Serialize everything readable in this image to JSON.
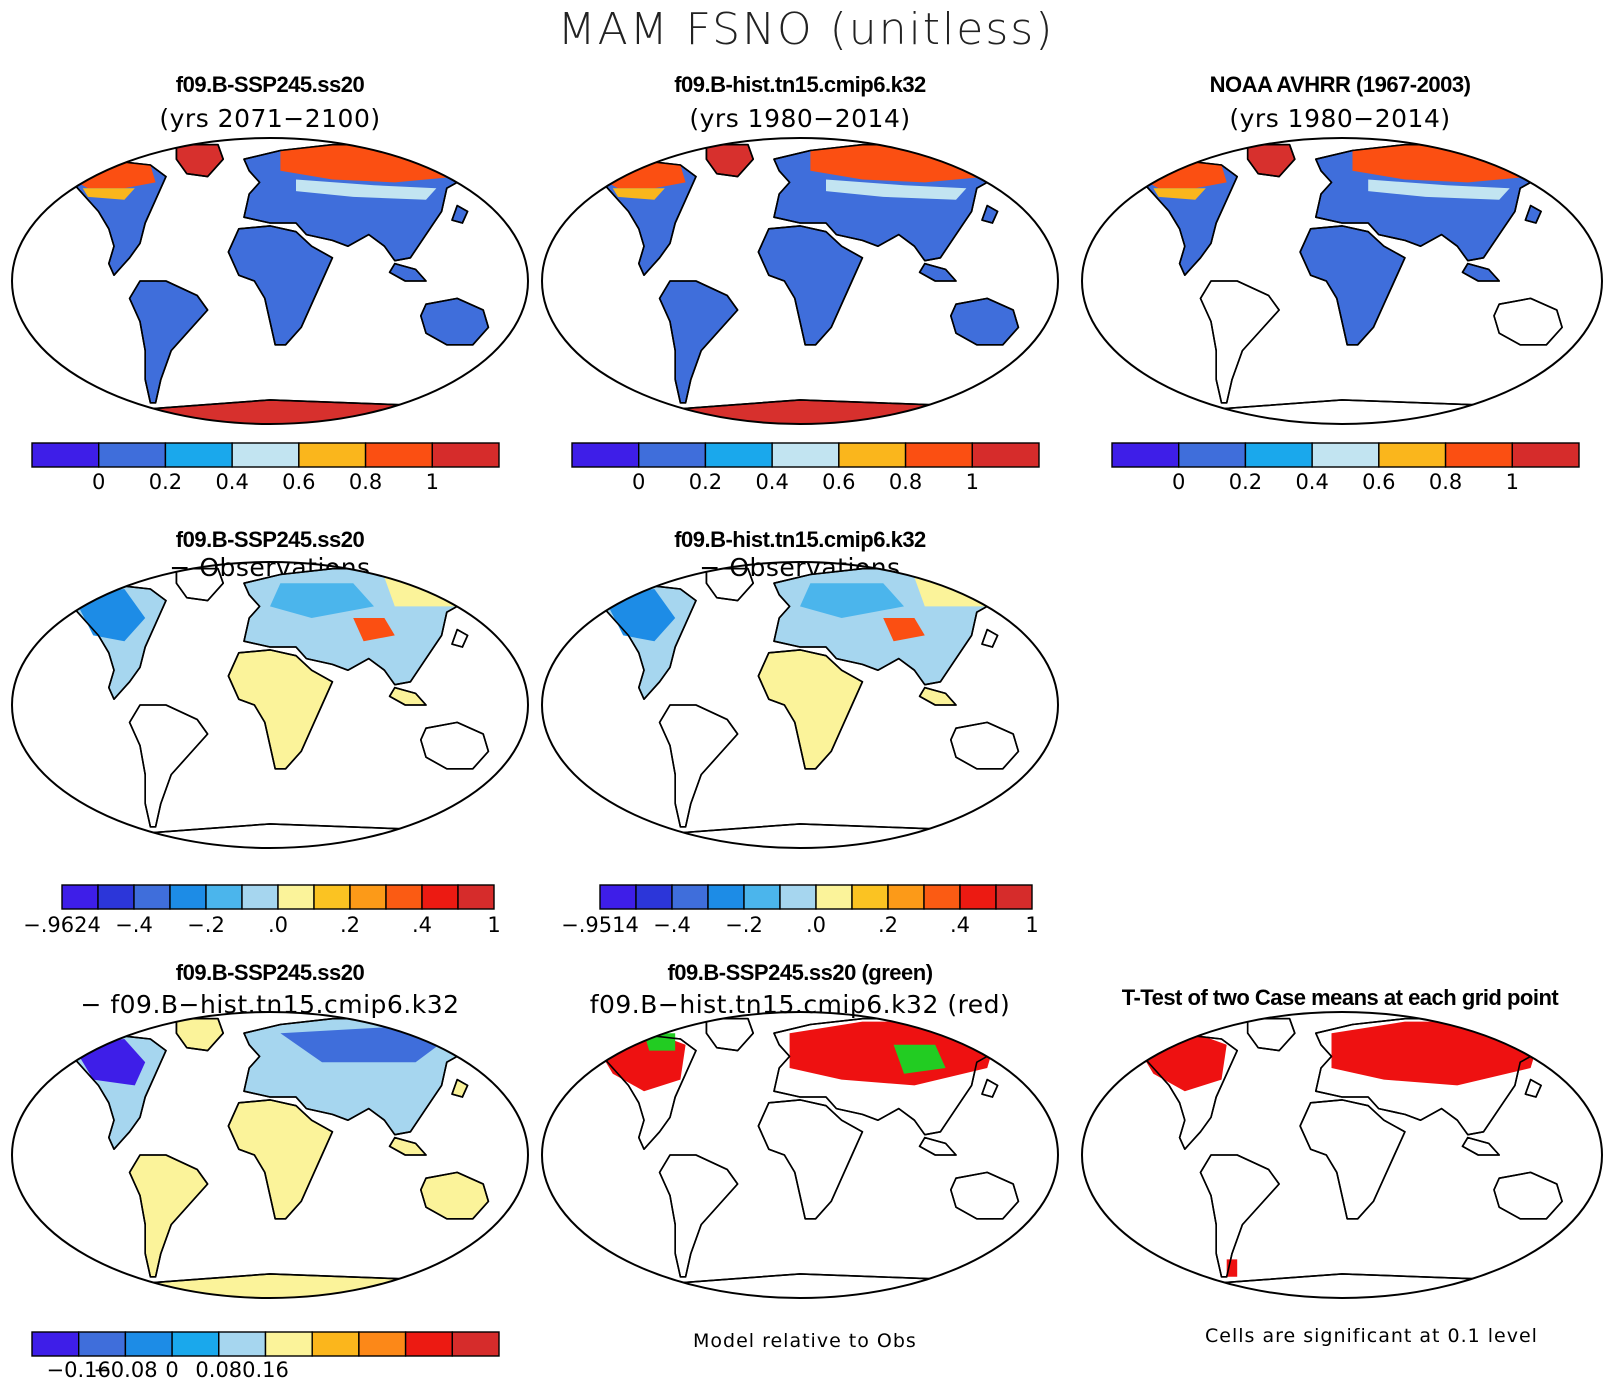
{
  "title": "MAM FSNO (unitless)",
  "panels": [
    {
      "id": "case1",
      "title": "f09.B-SSP245.ss20",
      "subtitle": "(yrs 2071−2100)",
      "fill": "case",
      "antarctica": "#d7302d"
    },
    {
      "id": "case2",
      "title": "f09.B-hist.tn15.cmip6.k32",
      "subtitle": "(yrs 1980−2014)",
      "fill": "case",
      "antarctica": "#d7302d"
    },
    {
      "id": "obs",
      "title": "NOAA AVHRR (1967-2003)",
      "subtitle": "(yrs 1980−2014)",
      "fill": "obs",
      "antarctica": "none"
    },
    {
      "id": "diff1",
      "title": "f09.B-SSP245.ss20",
      "subtitle": "− Observations",
      "fill": "diffobs",
      "antarctica": "none"
    },
    {
      "id": "diff2",
      "title": "f09.B-hist.tn15.cmip6.k32",
      "subtitle": "− Observations",
      "fill": "diffobs",
      "antarctica": "none"
    },
    {
      "id": "diffcase",
      "title": "f09.B-SSP245.ss20",
      "subtitle": "− f09.B−hist.tn15.cmip6.k32",
      "fill": "diffcase",
      "antarctica": "#fbf39a"
    },
    {
      "id": "sig",
      "title": "f09.B-SSP245.ss20 (green)",
      "subtitle": "f09.B−hist.tn15.cmip6.k32 (red)",
      "fill": "sig",
      "antarctica": "none"
    },
    {
      "id": "ttest",
      "title": "T-Test of two Case means at each grid point",
      "subtitle": "",
      "fill": "ttest",
      "antarctica": "none"
    }
  ],
  "colorbars": [
    {
      "id": "cb1",
      "colors": [
        "#3e1ee8",
        "#3f6edb",
        "#1aa8ec",
        "#c2e4f1",
        "#fab61c",
        "#fb4f12",
        "#d62c2b"
      ],
      "labels": [
        "0",
        "0.2",
        "0.4",
        "0.6",
        "0.8",
        "1"
      ]
    },
    {
      "id": "cb2",
      "colors": [
        "#3e1ee8",
        "#3f6edb",
        "#1aa8ec",
        "#c2e4f1",
        "#fab61c",
        "#fb4f12",
        "#d62c2b"
      ],
      "labels": [
        "0",
        "0.2",
        "0.4",
        "0.6",
        "0.8",
        "1"
      ]
    },
    {
      "id": "cb3",
      "colors": [
        "#3e1ee8",
        "#3f6edb",
        "#1aa8ec",
        "#c2e4f1",
        "#fab61c",
        "#fb4f12",
        "#d62c2b"
      ],
      "labels": [
        "0",
        "0.2",
        "0.4",
        "0.6",
        "0.8",
        "1"
      ]
    },
    {
      "id": "cb4",
      "colors": [
        "#3e1ee8",
        "#2c36d9",
        "#3f6edb",
        "#1d8ce6",
        "#4bb5ec",
        "#a6d6ef",
        "#fbf39a",
        "#fbc322",
        "#fc9a18",
        "#fb5b13",
        "#ec1a12",
        "#d62c2b"
      ],
      "labels": [
        "−.9624",
        "−.4",
        "−.2",
        ".0",
        ".2",
        ".4",
        "1"
      ]
    },
    {
      "id": "cb5",
      "colors": [
        "#3e1ee8",
        "#2c36d9",
        "#3f6edb",
        "#1d8ce6",
        "#4bb5ec",
        "#a6d6ef",
        "#fbf39a",
        "#fbc322",
        "#fc9a18",
        "#fb5b13",
        "#ec1a12",
        "#d62c2b"
      ],
      "labels": [
        "−.9514",
        "−.4",
        "−.2",
        ".0",
        ".2",
        ".4",
        "1"
      ]
    },
    {
      "id": "cb6",
      "colors": [
        "#3e1ee8",
        "#3f6edb",
        "#1d8ce6",
        "#1aa8ec",
        "#a6d6ef",
        "#fbf39a",
        "#fbb61c",
        "#fc8818",
        "#ec1a12",
        "#d62c2b"
      ],
      "labels": [
        "−0.16",
        "−0.08",
        "0",
        "0.08",
        "0.16"
      ]
    }
  ],
  "footnotes": {
    "model_rel": "Model relative to Obs",
    "cells_sig": "Cells are significant at 0.1 level"
  },
  "palette": {
    "land_blue": "#3f6edb",
    "snow_orange": "#fb4f12",
    "snow_light": "#c2e4f1",
    "snow_yellow": "#fab61c",
    "diff_yellow": "#fbf39a",
    "diff_lightblue": "#a6d6ef",
    "diff_blue": "#3f6edb",
    "sig_red": "#ee1111",
    "sig_green": "#22cc22"
  }
}
